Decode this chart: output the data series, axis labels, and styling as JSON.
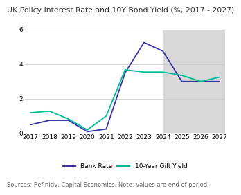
{
  "title": "UK Policy Interest Rate and 10Y Bond Yield (%, 2017 - 2027)",
  "source_note": "Sources: Refinitiv, Capital Economics. Note: values are end of period.",
  "years": [
    2017,
    2018,
    2019,
    2020,
    2021,
    2022,
    2023,
    2024,
    2025,
    2026,
    2027
  ],
  "bank_rate": [
    0.5,
    0.75,
    0.75,
    0.1,
    0.25,
    3.5,
    5.25,
    4.75,
    3.0,
    3.0,
    3.0
  ],
  "gilt_yield": [
    1.19,
    1.28,
    0.83,
    0.2,
    1.0,
    3.67,
    3.54,
    3.54,
    3.35,
    3.0,
    3.25
  ],
  "bank_rate_color": "#3535a8",
  "gilt_yield_color": "#00bb99",
  "forecast_start": 2024,
  "forecast_bg": "#d8d8d8",
  "ylim": [
    0,
    6
  ],
  "yticks": [
    0,
    2,
    4,
    6
  ],
  "xlim_start": 2017,
  "xlim_end": 2027,
  "background_color": "#ffffff",
  "grid_color": "#cccccc",
  "title_fontsize": 7.8,
  "label_fontsize": 6.5,
  "source_fontsize": 6.0,
  "legend_fontsize": 6.5
}
